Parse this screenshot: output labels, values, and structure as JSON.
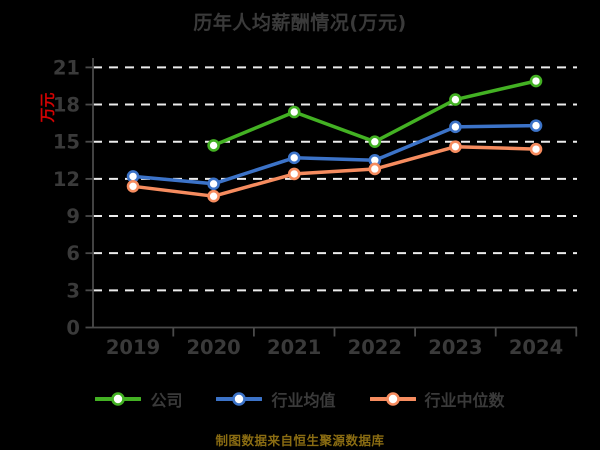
{
  "title": "历年人均薪酬情况(万元)",
  "footer": "制图数据来自恒生聚源数据库",
  "colors": {
    "background": "#000000",
    "title_text": "#3a3a3a",
    "tick_text": "#3a3a3a",
    "axis_line": "#4a4a4a",
    "gridline": "#ececec",
    "ylabel_text": "#d40202",
    "footer_text": "#8a6c12",
    "marker_fill": "#ffffff"
  },
  "chart_data": {
    "type": "line",
    "title": "历年人均薪酬情况(万元)",
    "ylabel": "万元",
    "xlabel": "",
    "categories": [
      "2019",
      "2020",
      "2021",
      "2022",
      "2023",
      "2024"
    ],
    "y_ticks": [
      0,
      3,
      6,
      9,
      12,
      15,
      18,
      21
    ],
    "ylim": [
      0,
      21
    ],
    "grid": "horizontal-dashed",
    "legend_position": "bottom",
    "series": [
      {
        "name": "公司",
        "color": "#43b123",
        "values": [
          null,
          14.7,
          17.4,
          15.0,
          18.4,
          19.9
        ]
      },
      {
        "name": "行业均值",
        "color": "#3c73c8",
        "values": [
          12.2,
          11.6,
          13.7,
          13.5,
          16.2,
          16.3
        ]
      },
      {
        "name": "行业中位数",
        "color": "#f68c5f",
        "values": [
          11.4,
          10.6,
          12.4,
          12.8,
          14.6,
          14.4
        ]
      }
    ]
  }
}
